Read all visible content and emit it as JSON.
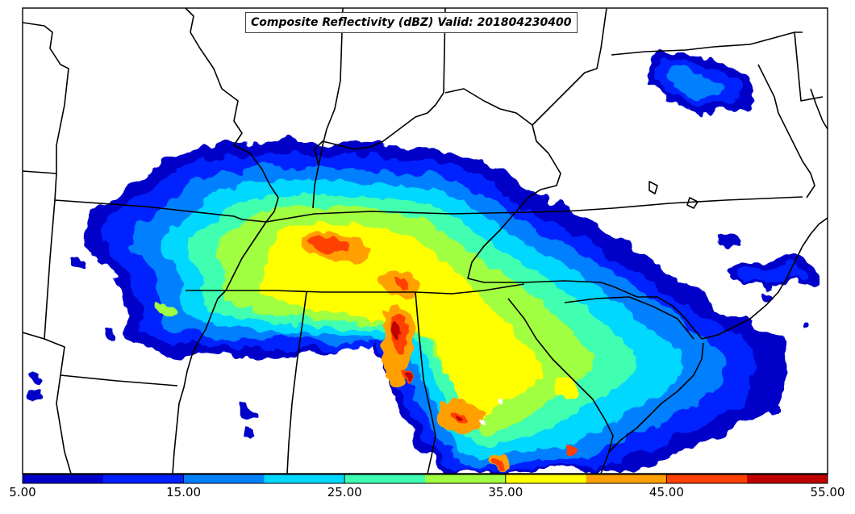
{
  "map": {
    "title": "Composite Reflectivity (dBZ) Valid: 201804230400",
    "field": "Composite Reflectivity",
    "units": "dBZ",
    "valid_time": "201804230400"
  },
  "colorbar": {
    "levels": [
      5,
      10,
      15,
      20,
      25,
      30,
      35,
      40,
      45,
      50,
      55
    ],
    "colors": [
      "#0000c8",
      "#0020ff",
      "#0080ff",
      "#00d8ff",
      "#40ffb0",
      "#a0ff40",
      "#ffff00",
      "#ffa000",
      "#ff4000",
      "#c00000"
    ],
    "tick_labels": [
      "5.00",
      "15.00",
      "25.00",
      "35.00",
      "45.00",
      "55.00"
    ]
  }
}
